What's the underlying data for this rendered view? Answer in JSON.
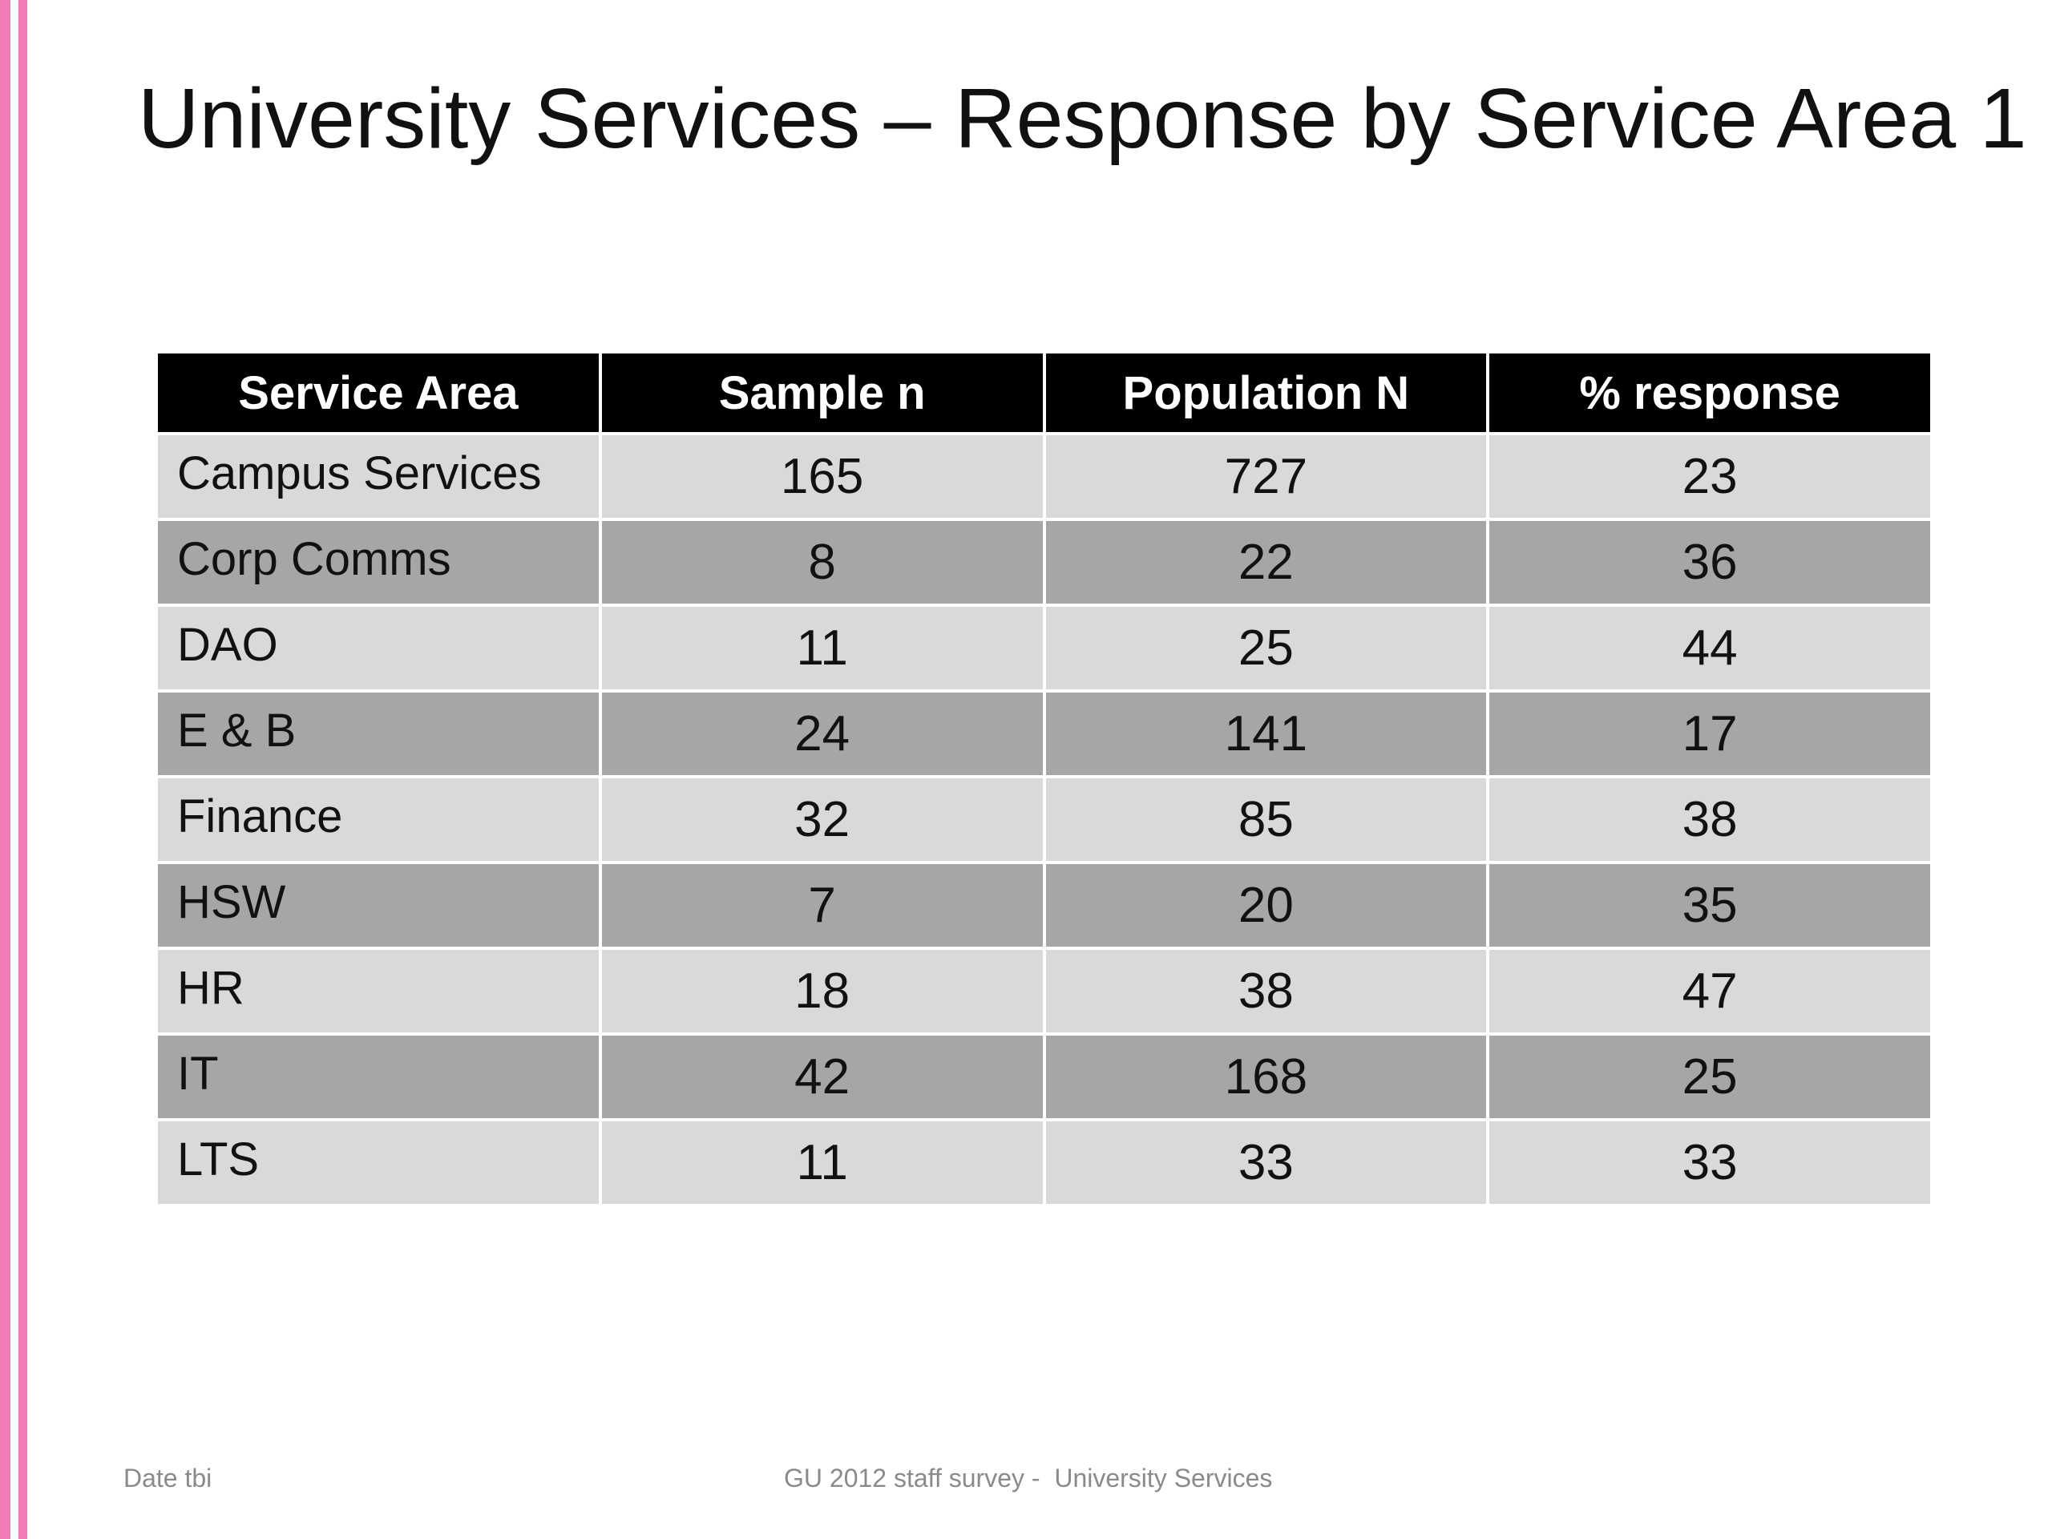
{
  "slide": {
    "title": "University Services – Response by Service Area 1",
    "accent_color": "#f47bb5"
  },
  "table": {
    "headers": [
      "Service Area",
      "Sample n",
      "Population N",
      "% response"
    ],
    "rows": [
      {
        "area": "Campus Services",
        "sample": "165",
        "population": "727",
        "response": "23"
      },
      {
        "area": "Corp Comms",
        "sample": "8",
        "population": "22",
        "response": "36"
      },
      {
        "area": "DAO",
        "sample": "11",
        "population": "25",
        "response": "44"
      },
      {
        "area": "E & B",
        "sample": "24",
        "population": "141",
        "response": "17"
      },
      {
        "area": "Finance",
        "sample": "32",
        "population": "85",
        "response": "38"
      },
      {
        "area": "HSW",
        "sample": "7",
        "population": "20",
        "response": "35"
      },
      {
        "area": "HR",
        "sample": "18",
        "population": "38",
        "response": "47"
      },
      {
        "area": "IT",
        "sample": "42",
        "population": "168",
        "response": "25"
      },
      {
        "area": "LTS",
        "sample": "11",
        "population": "33",
        "response": "33"
      }
    ]
  },
  "footer": {
    "date": "Date tbi",
    "center": "GU 2012 staff survey -  University Services"
  }
}
